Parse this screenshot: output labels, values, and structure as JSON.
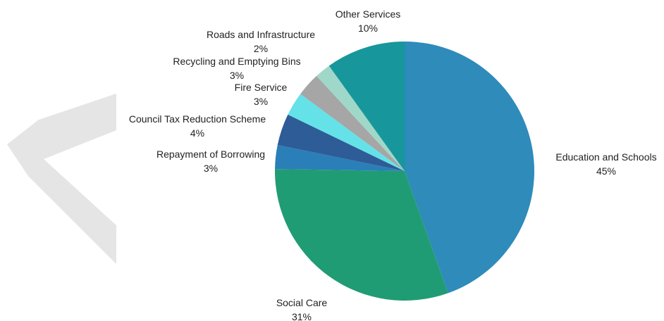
{
  "chart_data": {
    "type": "pie",
    "title": "",
    "start_angle_deg": 0,
    "direction": "clockwise",
    "slices": [
      {
        "label": "Education and Schools",
        "value": 45,
        "value_label": "45%",
        "color": "#2E8BBA"
      },
      {
        "label": "Social Care",
        "value": 31,
        "value_label": "31%",
        "color": "#209C74"
      },
      {
        "label": "Repayment of Borrowing",
        "value": 3,
        "value_label": "3%",
        "color": "#2A7FB8"
      },
      {
        "label": "Council Tax Reduction Scheme",
        "value": 4,
        "value_label": "4%",
        "color": "#2E5C97"
      },
      {
        "label": "Fire Service",
        "value": 3,
        "value_label": "3%",
        "color": "#64E2E8"
      },
      {
        "label": "Recycling and Emptying Bins",
        "value": 3,
        "value_label": "3%",
        "color": "#A6A6A6"
      },
      {
        "label": "Roads and Infrastructure",
        "value": 2,
        "value_label": "2%",
        "color": "#9FD8C8"
      },
      {
        "label": "Other Services",
        "value": 10,
        "value_label": "10%",
        "color": "#17979B"
      }
    ]
  },
  "decor": {
    "watermark_color": "#E5E5E5"
  }
}
